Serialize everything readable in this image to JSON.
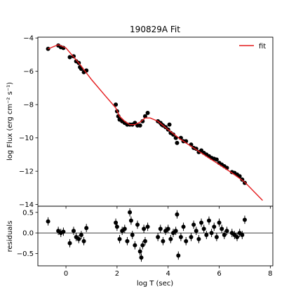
{
  "chart_data": [
    {
      "type": "scatter",
      "title": "190829A Fit",
      "xlabel": "",
      "ylabel": "log Flux (erg cm⁻² s⁻¹)",
      "xlim": [
        -1.1,
        8.1
      ],
      "ylim": [
        -14.1,
        -3.95
      ],
      "xticks": [
        0,
        2,
        4,
        6,
        8
      ],
      "yticks": [
        -14,
        -12,
        -10,
        -8,
        -6,
        -4
      ],
      "ytick_labels": [
        "−14",
        "−12",
        "−10",
        "−8",
        "−6",
        "−4"
      ],
      "grid": false,
      "legend": {
        "position": "top-right",
        "entries": [
          {
            "label": "fit",
            "color": "#e41a1c"
          }
        ]
      },
      "series": [
        {
          "name": "data",
          "marker": "circle",
          "color": "#000000",
          "x": [
            -0.7,
            -0.3,
            -0.2,
            -0.1,
            0.15,
            0.3,
            0.4,
            0.5,
            0.55,
            0.6,
            0.7,
            0.8,
            1.95,
            2.0,
            2.05,
            2.1,
            2.2,
            2.3,
            2.4,
            2.5,
            2.6,
            2.7,
            2.8,
            2.9,
            3.0,
            3.1,
            3.2,
            3.6,
            3.7,
            3.75,
            3.8,
            3.9,
            4.0,
            4.05,
            4.1,
            4.2,
            4.3,
            4.35,
            4.5,
            4.6,
            4.7,
            4.9,
            5.0,
            5.1,
            5.2,
            5.3,
            5.4,
            5.5,
            5.6,
            5.7,
            5.8,
            5.9,
            6.0,
            6.1,
            6.2,
            6.3,
            6.5,
            6.6,
            6.7,
            6.8,
            6.9,
            7.0
          ],
          "y": [
            -4.65,
            -4.45,
            -4.55,
            -4.6,
            -5.15,
            -5.1,
            -5.4,
            -5.5,
            -5.75,
            -5.85,
            -6.05,
            -5.95,
            -8.0,
            -8.4,
            -8.7,
            -8.9,
            -9.0,
            -9.1,
            -9.2,
            -9.2,
            -9.2,
            -9.1,
            -9.25,
            -9.25,
            -9.0,
            -8.7,
            -8.5,
            -9.0,
            -9.1,
            -9.2,
            -9.25,
            -9.35,
            -9.5,
            -9.2,
            -9.7,
            -9.8,
            -10.0,
            -10.3,
            -10.0,
            -10.2,
            -10.2,
            -10.4,
            -10.6,
            -10.65,
            -10.85,
            -10.75,
            -10.9,
            -11.0,
            -11.1,
            -11.2,
            -11.25,
            -11.3,
            -11.5,
            -11.6,
            -11.7,
            -11.8,
            -12.05,
            -12.1,
            -12.2,
            -12.3,
            -12.5,
            -12.7
          ],
          "yerr": 0.09
        },
        {
          "name": "fit",
          "type": "line",
          "color": "#e41a1c",
          "x": [
            -0.7,
            -0.3,
            0.0,
            0.5,
            1.0,
            1.5,
            1.95,
            2.1,
            2.3,
            2.5,
            2.7,
            2.9,
            3.1,
            3.3,
            3.6,
            4.0,
            4.5,
            5.0,
            5.5,
            6.0,
            6.5,
            7.0,
            7.7
          ],
          "y": [
            -4.65,
            -4.4,
            -4.6,
            -5.5,
            -6.5,
            -7.4,
            -8.2,
            -8.7,
            -9.0,
            -9.2,
            -9.2,
            -9.05,
            -8.8,
            -8.8,
            -9.0,
            -9.5,
            -10.1,
            -10.6,
            -11.1,
            -11.6,
            -12.1,
            -12.65,
            -13.75
          ]
        }
      ]
    },
    {
      "type": "scatter",
      "title": "",
      "xlabel": "log T (sec)",
      "ylabel": "residuals",
      "xlim": [
        -1.1,
        8.1
      ],
      "ylim": [
        -0.8,
        0.65
      ],
      "xticks": [
        0,
        2,
        4,
        6,
        8
      ],
      "xtick_labels": [
        "0",
        "2",
        "4",
        "6",
        "8"
      ],
      "yticks": [
        -0.5,
        0.0,
        0.5
      ],
      "ytick_labels": [
        "−0.5",
        "0.0",
        "0.5"
      ],
      "hline": 0,
      "grid": false,
      "series": [
        {
          "name": "residuals",
          "marker": "circle",
          "color": "#000000",
          "x": [
            -0.7,
            -0.3,
            -0.2,
            -0.1,
            0.15,
            0.3,
            0.4,
            0.5,
            0.6,
            0.7,
            0.8,
            1.95,
            2.0,
            2.1,
            2.2,
            2.3,
            2.4,
            2.5,
            2.55,
            2.6,
            2.7,
            2.8,
            2.9,
            2.95,
            3.0,
            3.05,
            3.1,
            3.2,
            3.6,
            3.7,
            3.8,
            3.9,
            4.0,
            4.1,
            4.2,
            4.3,
            4.35,
            4.4,
            4.5,
            4.6,
            4.7,
            4.9,
            5.0,
            5.1,
            5.2,
            5.3,
            5.4,
            5.5,
            5.6,
            5.7,
            5.8,
            5.9,
            6.0,
            6.1,
            6.2,
            6.3,
            6.5,
            6.6,
            6.7,
            6.8,
            6.9,
            7.0
          ],
          "y": [
            0.28,
            0.05,
            0.0,
            0.03,
            -0.25,
            0.05,
            -0.1,
            -0.15,
            -0.05,
            -0.2,
            0.12,
            0.25,
            0.15,
            -0.15,
            0.05,
            0.1,
            -0.2,
            0.5,
            0.3,
            -0.05,
            -0.3,
            0.2,
            -0.45,
            -0.6,
            -0.3,
            0.1,
            -0.2,
            0.15,
            -0.1,
            0.1,
            -0.2,
            0.05,
            0.1,
            -0.15,
            0.0,
            0.05,
            0.45,
            -0.55,
            -0.1,
            0.15,
            -0.2,
            -0.1,
            0.2,
            0.05,
            -0.15,
            0.25,
            0.1,
            -0.05,
            0.3,
            0.0,
            0.15,
            -0.1,
            0.25,
            0.1,
            -0.05,
            0.05,
            0.0,
            -0.05,
            -0.1,
            0.0,
            -0.05,
            0.32
          ],
          "yerr": 0.1
        }
      ]
    }
  ]
}
